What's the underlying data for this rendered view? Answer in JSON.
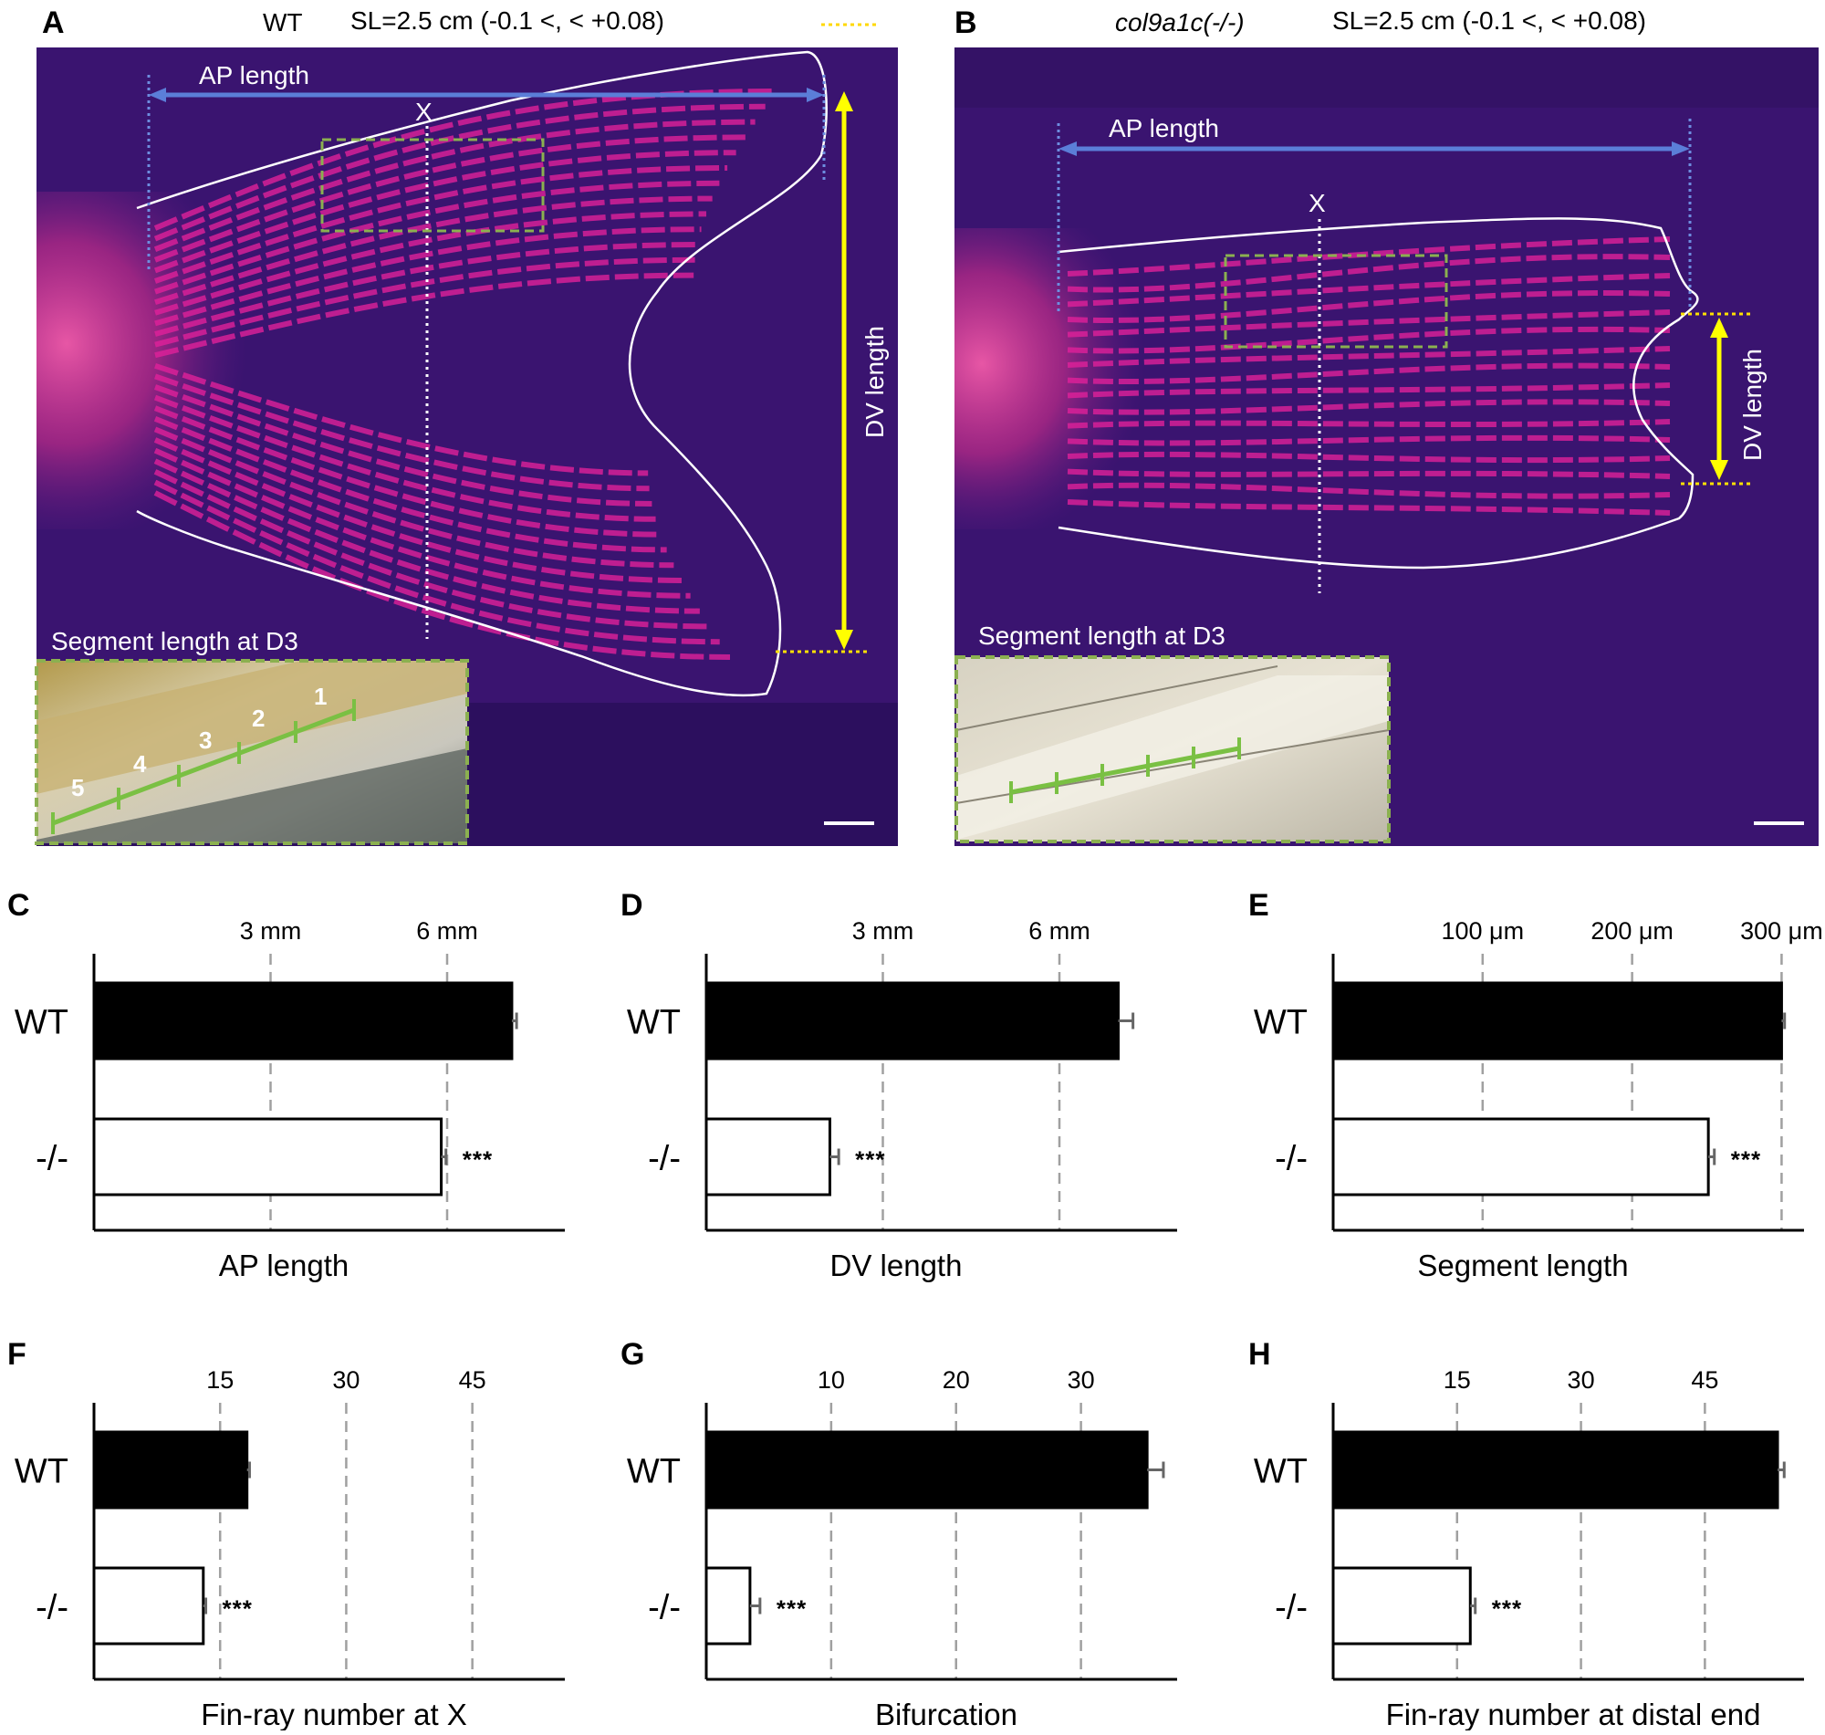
{
  "panels": {
    "A": {
      "letter": "A",
      "genotype": "WT",
      "sl_text": "SL=2.5 cm (-0.1 <, < +0.08)",
      "ap_label": "AP length",
      "dv_label": "DV length",
      "x_mark": "X",
      "inset_label": "Segment length at D3",
      "segment_numbers": [
        "1",
        "2",
        "3",
        "4",
        "5"
      ]
    },
    "B": {
      "letter": "B",
      "genotype": "col9a1c(-/-)",
      "sl_text": "SL=2.5 cm (-0.1 <, < +0.08)",
      "ap_label": "AP length",
      "dv_label": "DV length",
      "x_mark": "X",
      "inset_label": "Segment length at D3"
    }
  },
  "colors": {
    "fluor_background": "#3a1470",
    "fin_ray_magenta": "#e0209a",
    "ap_arrow_blue": "#5b7ed8",
    "dv_arrow_yellow": "#ffff00",
    "box_green": "#8bb050",
    "wt_bar": "#000000",
    "mutant_bar": "#ffffff"
  },
  "chart_data": [
    {
      "id": "C",
      "type": "bar",
      "orientation": "horizontal",
      "categories": [
        "WT",
        "-/-"
      ],
      "values": [
        7.1,
        5.9
      ],
      "errors": [
        0.08,
        0.08
      ],
      "significance": [
        "",
        "***"
      ],
      "xticks": [
        3,
        6
      ],
      "xtick_labels": [
        "3 mm",
        "6 mm"
      ],
      "xlim": [
        0,
        8
      ],
      "xlabel": "AP length",
      "grid": "dashed vertical"
    },
    {
      "id": "D",
      "type": "bar",
      "orientation": "horizontal",
      "categories": [
        "WT",
        "-/-"
      ],
      "values": [
        7.0,
        2.1
      ],
      "errors": [
        0.25,
        0.15
      ],
      "significance": [
        "",
        "***"
      ],
      "xticks": [
        3,
        6
      ],
      "xtick_labels": [
        "3 mm",
        "6 mm"
      ],
      "xlim": [
        0,
        8
      ],
      "xlabel": "DV length",
      "grid": "dashed vertical"
    },
    {
      "id": "E",
      "type": "bar",
      "orientation": "horizontal",
      "categories": [
        "WT",
        "-/-"
      ],
      "values": [
        300,
        251
      ],
      "errors": [
        2,
        4
      ],
      "significance": [
        "",
        "***"
      ],
      "xticks": [
        100,
        200,
        300
      ],
      "xtick_labels": [
        "100 μm",
        "200 μm",
        "300 μm"
      ],
      "xlim": [
        0,
        315
      ],
      "xlabel": "Segment length",
      "grid": "dashed vertical"
    },
    {
      "id": "F",
      "type": "bar",
      "orientation": "horizontal",
      "categories": [
        "WT",
        "-/-"
      ],
      "values": [
        18.2,
        13.0
      ],
      "errors": [
        0.3,
        0.3
      ],
      "significance": [
        "",
        "***"
      ],
      "xticks": [
        15,
        30,
        45
      ],
      "xtick_labels": [
        "15",
        "30",
        "45"
      ],
      "xlim": [
        0,
        56
      ],
      "xlabel": "Fin-ray number at X",
      "grid": "dashed vertical"
    },
    {
      "id": "G",
      "type": "bar",
      "orientation": "horizontal",
      "categories": [
        "WT",
        "-/-"
      ],
      "values": [
        35.3,
        3.5
      ],
      "errors": [
        1.3,
        0.8
      ],
      "significance": [
        "",
        "***"
      ],
      "xticks": [
        10,
        20,
        30
      ],
      "xtick_labels": [
        "10",
        "20",
        "30"
      ],
      "xlim": [
        0,
        37.7
      ],
      "xlabel": "Bifurcation",
      "grid": "dashed vertical"
    },
    {
      "id": "H",
      "type": "bar",
      "orientation": "horizontal",
      "categories": [
        "WT",
        "-/-"
      ],
      "values": [
        53.8,
        16.6
      ],
      "errors": [
        0.8,
        0.6
      ],
      "significance": [
        "",
        "***"
      ],
      "xticks": [
        15,
        30,
        45
      ],
      "xtick_labels": [
        "15",
        "30",
        "45"
      ],
      "xlim": [
        0,
        57
      ],
      "xlabel": "Fin-ray number at distal end",
      "grid": "dashed vertical"
    }
  ]
}
